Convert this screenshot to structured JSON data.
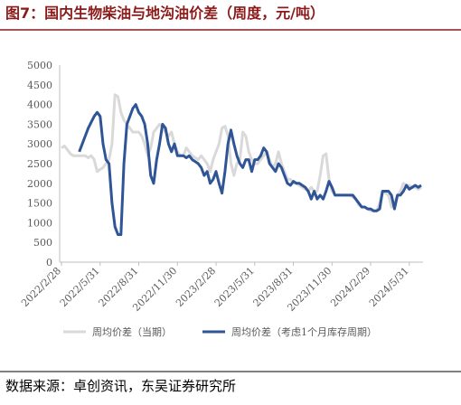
{
  "chart_data": {
    "type": "line",
    "title": "图7：国内生物柴油与地沟油价差（周度，元/吨）",
    "source": "数据来源：卓创资讯，东吴证券研究所",
    "categories": [
      "2022/2/28",
      null,
      null,
      null,
      null,
      null,
      null,
      null,
      null,
      null,
      null,
      null,
      null,
      "2022/5/31",
      null,
      null,
      null,
      null,
      null,
      null,
      null,
      null,
      null,
      null,
      null,
      null,
      "2022/8/31",
      null,
      null,
      null,
      null,
      null,
      null,
      null,
      null,
      null,
      null,
      null,
      null,
      "2022/11/30",
      null,
      null,
      null,
      null,
      null,
      null,
      null,
      null,
      null,
      null,
      null,
      null,
      "2023/2/28",
      null,
      null,
      null,
      null,
      null,
      null,
      null,
      null,
      null,
      null,
      null,
      null,
      "2023/5/31",
      null,
      null,
      null,
      null,
      null,
      null,
      null,
      null,
      null,
      null,
      null,
      null,
      "2023/8/31",
      null,
      null,
      null,
      null,
      null,
      null,
      null,
      null,
      null,
      null,
      null,
      null,
      "2023/11/30",
      null,
      null,
      null,
      null,
      null,
      null,
      null,
      null,
      null,
      null,
      null,
      null,
      "2024/2/29",
      null,
      null,
      null,
      null,
      null,
      null,
      null,
      null,
      null,
      null,
      null,
      null,
      "2024/5/31",
      null,
      null,
      null,
      null
    ],
    "series": [
      {
        "name": "周均价差（当期）",
        "color": "#d9d9d9",
        "values": [
          2900,
          2950,
          2850,
          2750,
          2700,
          2700,
          2700,
          2700,
          2700,
          2650,
          2700,
          2600,
          2300,
          2350,
          2400,
          2500,
          2600,
          3000,
          4250,
          4200,
          3800,
          3600,
          3500,
          3400,
          3300,
          3300,
          3300,
          3200,
          3000,
          2700,
          2900,
          3300,
          3400,
          3500,
          3400,
          3300,
          3200,
          3300,
          3000,
          2800,
          2700,
          2700,
          2900,
          2800,
          2700,
          2650,
          2600,
          2700,
          2600,
          2500,
          2300,
          2600,
          2800,
          3000,
          3400,
          3450,
          3200,
          2500,
          2200,
          2500,
          2600,
          3300,
          3200,
          2800,
          2600,
          2500,
          2500,
          2600,
          2700,
          2800,
          2600,
          2400,
          2500,
          2800,
          2500,
          2300,
          2100,
          2100,
          2000,
          2000,
          1950,
          1900,
          1850,
          1800,
          1900,
          1800,
          1800,
          2200,
          2700,
          2750,
          2100,
          1800,
          1700,
          1700,
          1700,
          1700,
          1700,
          1700,
          1650,
          1600,
          1450,
          1400,
          1400,
          1350,
          1300,
          1300,
          1300,
          1500,
          1800,
          1750,
          1700,
          1400,
          1500,
          1700,
          1800,
          2000,
          1950,
          1950,
          1900,
          1900,
          1850,
          1900
        ]
      },
      {
        "name": "周均价差（考虑1个月库存周期）",
        "color": "#2f5597",
        "values": [
          null,
          null,
          null,
          null,
          null,
          null,
          2800,
          3000,
          3200,
          3400,
          3550,
          3700,
          3800,
          3700,
          3000,
          2600,
          2500,
          1500,
          900,
          700,
          700,
          2500,
          3500,
          3700,
          3900,
          4000,
          3800,
          3700,
          3500,
          3000,
          2200,
          2000,
          2600,
          3000,
          3500,
          3400,
          3000,
          2800,
          3000,
          2700,
          2700,
          2700,
          2650,
          2700,
          2600,
          2550,
          2500,
          2400,
          2200,
          2300,
          2000,
          2100,
          2300,
          2000,
          1750,
          2300,
          3000,
          3350,
          3000,
          2700,
          2500,
          2400,
          2600,
          2600,
          2300,
          2600,
          2600,
          2700,
          2900,
          2800,
          2500,
          2400,
          2300,
          2500,
          2400,
          2200,
          2000,
          1950,
          2050,
          2000,
          2000,
          1950,
          1900,
          1800,
          1600,
          1800,
          1600,
          1700,
          1600,
          1800,
          2050,
          1900,
          1700,
          1700,
          1700,
          1700,
          1700,
          1700,
          1700,
          1600,
          1500,
          1400,
          1400,
          1350,
          1350,
          1300,
          1300,
          1350,
          1800,
          1800,
          1800,
          1700,
          1350,
          1700,
          1700,
          1800,
          1950,
          1850,
          1900,
          1950,
          1900,
          1950
        ]
      }
    ],
    "ylim": [
      0,
      5000
    ],
    "yticks": [
      0,
      500,
      1000,
      1500,
      2000,
      2500,
      3000,
      3500,
      4000,
      4500,
      5000
    ],
    "grid": false
  }
}
